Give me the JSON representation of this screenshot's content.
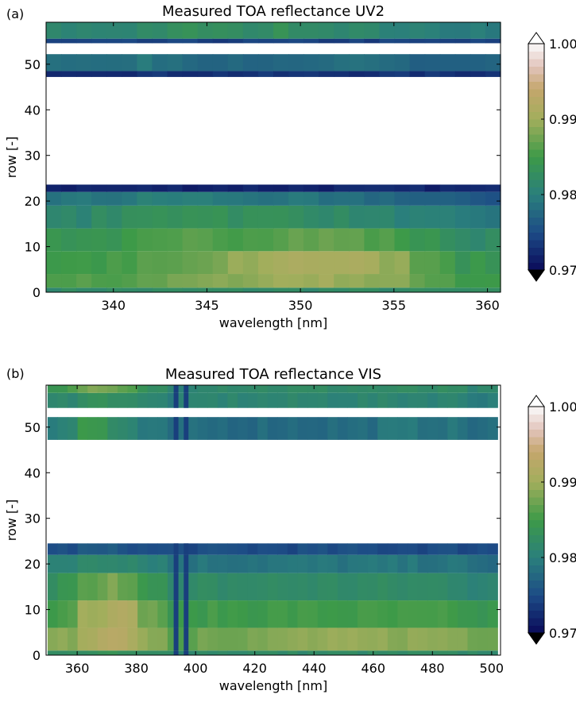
{
  "colormap": {
    "name": "gist_earth",
    "stops": [
      [
        "0.970",
        "#0a0a5a"
      ],
      [
        "0.975",
        "#1d4c86"
      ],
      [
        "0.980",
        "#2a7f7c"
      ],
      [
        "0.985",
        "#3d9a48"
      ],
      [
        "0.990",
        "#a2ae5c"
      ],
      [
        "0.994",
        "#c4a66c"
      ],
      [
        "0.997",
        "#e2c4bc"
      ],
      [
        "1.000",
        "#fafafa"
      ]
    ],
    "under": "#000000",
    "over": "#ffffff"
  },
  "chart_data": [
    {
      "type": "heatmap",
      "panel_label": "(a)",
      "title": "Measured TOA reflectance UV2",
      "xlabel": "wavelength [nm]",
      "ylabel": "row [-]",
      "xlim": [
        336.4,
        360.7
      ],
      "ylim": [
        0,
        59.2
      ],
      "xticks": [
        340,
        345,
        350,
        355,
        360
      ],
      "yticks": [
        0,
        10,
        20,
        30,
        40,
        50
      ],
      "data_x_range": [
        336.4,
        360.7
      ],
      "colorbar": {
        "ticks": [
          "0.97",
          "0.98",
          "0.99",
          "1.00"
        ],
        "range": [
          0.97,
          1.0
        ],
        "extend": "both"
      },
      "row_bands": [
        {
          "rows": [
            0,
            1
          ],
          "values": [
            0.982,
            0.982,
            0.982,
            0.982,
            0.982,
            0.982,
            0.982,
            0.982,
            0.982,
            0.982
          ]
        },
        {
          "rows": [
            1,
            4
          ],
          "values": [
            0.986,
            0.986,
            0.987,
            0.988,
            0.989,
            0.99,
            0.99,
            0.989,
            0.987,
            0.985
          ]
        },
        {
          "rows": [
            4,
            9
          ],
          "values": [
            0.985,
            0.985,
            0.986,
            0.987,
            0.989,
            0.991,
            0.991,
            0.99,
            0.987,
            0.984
          ]
        },
        {
          "rows": [
            9,
            14
          ],
          "values": [
            0.984,
            0.984,
            0.985,
            0.986,
            0.986,
            0.987,
            0.987,
            0.986,
            0.984,
            0.982
          ]
        },
        {
          "rows": [
            14,
            19
          ],
          "values": [
            0.981,
            0.982,
            0.983,
            0.984,
            0.983,
            0.983,
            0.982,
            0.981,
            0.98,
            0.979
          ]
        },
        {
          "rows": [
            19,
            22
          ],
          "values": [
            0.979,
            0.979,
            0.98,
            0.98,
            0.979,
            0.979,
            0.978,
            0.978,
            0.977,
            0.976
          ]
        },
        {
          "rows": [
            22,
            23.6
          ],
          "values": [
            0.972,
            0.972,
            0.972,
            0.972,
            0.972,
            0.972,
            0.972,
            0.972,
            0.972,
            0.972
          ]
        },
        {
          "rows": [
            47.2,
            48.5
          ],
          "values": [
            0.973,
            0.973,
            0.973,
            0.973,
            0.973,
            0.973,
            0.973,
            0.973,
            0.973,
            0.973
          ]
        },
        {
          "rows": [
            48.5,
            52.2
          ],
          "values": [
            0.979,
            0.978,
            0.979,
            0.978,
            0.978,
            0.977,
            0.978,
            0.978,
            0.977,
            0.977
          ]
        },
        {
          "rows": [
            54.6,
            55.6
          ],
          "values": [
            0.974,
            0.974,
            0.974,
            0.974,
            0.974,
            0.974,
            0.974,
            0.974,
            0.974,
            0.974
          ]
        },
        {
          "rows": [
            55.6,
            59.2
          ],
          "values": [
            0.981,
            0.981,
            0.982,
            0.983,
            0.982,
            0.983,
            0.982,
            0.981,
            0.98,
            0.98
          ]
        }
      ],
      "absorption_lines_nm": []
    },
    {
      "type": "heatmap",
      "panel_label": "(b)",
      "title": "Measured TOA reflectance VIS",
      "xlabel": "wavelength [nm]",
      "ylabel": "row [-]",
      "xlim": [
        349.5,
        503
      ],
      "ylim": [
        0,
        59.2
      ],
      "xticks": [
        360,
        380,
        400,
        420,
        440,
        460,
        480,
        500
      ],
      "yticks": [
        0,
        10,
        20,
        30,
        40,
        50
      ],
      "data_x_range": [
        350,
        502
      ],
      "colorbar": {
        "ticks": [
          "0.97",
          "0.98",
          "0.99",
          "1.00"
        ],
        "range": [
          0.97,
          1.0
        ],
        "extend": "both"
      },
      "row_bands": [
        {
          "rows": [
            0,
            1
          ],
          "values": [
            0.982,
            0.983,
            0.983,
            0.982,
            0.982,
            0.982,
            0.982,
            0.982,
            0.982,
            0.982,
            0.982,
            0.982,
            0.982,
            0.982,
            0.982
          ]
        },
        {
          "rows": [
            1,
            6
          ],
          "values": [
            0.988,
            0.991,
            0.992,
            0.99,
            0.986,
            0.988,
            0.988,
            0.988,
            0.989,
            0.989,
            0.989,
            0.989,
            0.989,
            0.989,
            0.988
          ]
        },
        {
          "rows": [
            6,
            12
          ],
          "values": [
            0.985,
            0.99,
            0.992,
            0.988,
            0.984,
            0.985,
            0.985,
            0.985,
            0.985,
            0.985,
            0.985,
            0.985,
            0.985,
            0.985,
            0.984
          ]
        },
        {
          "rows": [
            12,
            18
          ],
          "values": [
            0.983,
            0.986,
            0.988,
            0.985,
            0.981,
            0.982,
            0.982,
            0.982,
            0.982,
            0.982,
            0.982,
            0.982,
            0.982,
            0.982,
            0.981
          ]
        },
        {
          "rows": [
            18,
            22
          ],
          "values": [
            0.98,
            0.982,
            0.982,
            0.981,
            0.979,
            0.979,
            0.979,
            0.979,
            0.979,
            0.979,
            0.979,
            0.979,
            0.979,
            0.979,
            0.978
          ]
        },
        {
          "rows": [
            22,
            24.5
          ],
          "values": [
            0.975,
            0.976,
            0.976,
            0.975,
            0.975,
            0.975,
            0.975,
            0.975,
            0.975,
            0.975,
            0.975,
            0.975,
            0.975,
            0.975,
            0.975
          ]
        },
        {
          "rows": [
            47.2,
            52.2
          ],
          "values": [
            0.98,
            0.985,
            0.982,
            0.979,
            0.978,
            0.978,
            0.978,
            0.978,
            0.978,
            0.978,
            0.978,
            0.979,
            0.979,
            0.979,
            0.978
          ]
        },
        {
          "rows": [
            54.2,
            57.5
          ],
          "values": [
            0.981,
            0.983,
            0.983,
            0.981,
            0.98,
            0.981,
            0.981,
            0.981,
            0.981,
            0.981,
            0.981,
            0.981,
            0.981,
            0.981,
            0.98
          ]
        },
        {
          "rows": [
            57.5,
            59.2
          ],
          "values": [
            0.984,
            0.988,
            0.987,
            0.983,
            0.981,
            0.982,
            0.982,
            0.982,
            0.982,
            0.982,
            0.982,
            0.982,
            0.982,
            0.982,
            0.981
          ]
        }
      ],
      "absorption_lines_nm": [
        393.4,
        396.8
      ]
    }
  ]
}
